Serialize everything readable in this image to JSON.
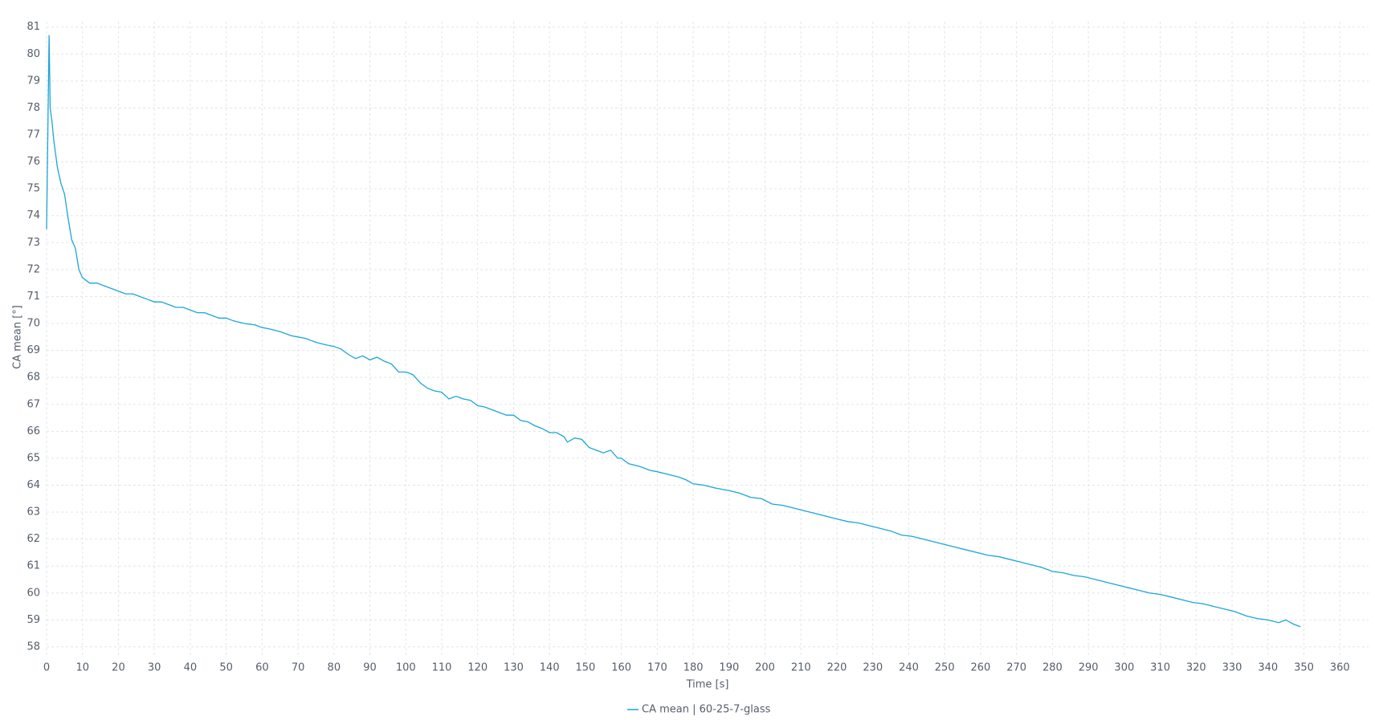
{
  "chart_data": {
    "type": "line",
    "x_label": "Time [s]",
    "y_label": "CA mean [°]",
    "x": [
      0,
      0.7,
      1,
      1.5,
      2,
      3,
      4,
      5,
      6,
      7,
      8,
      9,
      10,
      11,
      12,
      14,
      16,
      18,
      20,
      22,
      24,
      26,
      28,
      30,
      32,
      34,
      36,
      38,
      40,
      42,
      44,
      46,
      48,
      50,
      52,
      55,
      58,
      60,
      62,
      65,
      68,
      70,
      72,
      75,
      78,
      80,
      82,
      84,
      86,
      88,
      90,
      92,
      94,
      96,
      98,
      100,
      102,
      104,
      106,
      108,
      110,
      112,
      114,
      116,
      118,
      120,
      122,
      124,
      126,
      128,
      130,
      132,
      134,
      136,
      138,
      140,
      142,
      144,
      145,
      147,
      149,
      151,
      153,
      155,
      157,
      159,
      160,
      162,
      165,
      168,
      170,
      173,
      176,
      178,
      180,
      183,
      186,
      190,
      193,
      196,
      199,
      202,
      205,
      208,
      211,
      214,
      217,
      220,
      223,
      226,
      229,
      232,
      235,
      238,
      241,
      244,
      247,
      250,
      253,
      256,
      259,
      262,
      265,
      268,
      271,
      274,
      277,
      280,
      283,
      286,
      289,
      292,
      295,
      298,
      301,
      304,
      307,
      310,
      313,
      316,
      319,
      322,
      325,
      328,
      331,
      334,
      337,
      340,
      343,
      345,
      347,
      349
    ],
    "series": [
      {
        "name": "CA mean | 60-25-7-glass",
        "color": "#1ba5d8",
        "values": [
          73.5,
          80.7,
          78.0,
          77.5,
          76.8,
          75.8,
          75.2,
          74.8,
          73.9,
          73.1,
          72.8,
          72.0,
          71.7,
          71.6,
          71.5,
          71.5,
          71.4,
          71.3,
          71.2,
          71.1,
          71.1,
          71.0,
          70.9,
          70.8,
          70.8,
          70.7,
          70.6,
          70.6,
          70.5,
          70.4,
          70.4,
          70.3,
          70.2,
          70.2,
          70.1,
          70.0,
          69.95,
          69.85,
          69.8,
          69.7,
          69.55,
          69.5,
          69.45,
          69.3,
          69.2,
          69.15,
          69.05,
          68.85,
          68.7,
          68.8,
          68.65,
          68.75,
          68.6,
          68.5,
          68.2,
          68.2,
          68.1,
          67.8,
          67.6,
          67.5,
          67.45,
          67.2,
          67.3,
          67.2,
          67.15,
          66.95,
          66.9,
          66.8,
          66.7,
          66.6,
          66.6,
          66.4,
          66.35,
          66.2,
          66.1,
          65.95,
          65.95,
          65.8,
          65.6,
          65.75,
          65.7,
          65.4,
          65.3,
          65.2,
          65.3,
          65.0,
          65.0,
          64.8,
          64.7,
          64.55,
          64.5,
          64.4,
          64.3,
          64.2,
          64.05,
          64.0,
          63.9,
          63.8,
          63.7,
          63.55,
          63.5,
          63.3,
          63.25,
          63.15,
          63.05,
          62.95,
          62.85,
          62.75,
          62.65,
          62.6,
          62.5,
          62.4,
          62.3,
          62.15,
          62.1,
          62.0,
          61.9,
          61.8,
          61.7,
          61.6,
          61.5,
          61.4,
          61.35,
          61.25,
          61.15,
          61.05,
          60.95,
          60.8,
          60.75,
          60.65,
          60.6,
          60.5,
          60.4,
          60.3,
          60.2,
          60.1,
          60.0,
          59.95,
          59.85,
          59.75,
          59.65,
          59.6,
          59.5,
          59.4,
          59.3,
          59.15,
          59.05,
          59.0,
          58.9,
          59.0,
          58.85,
          58.75
        ]
      }
    ],
    "xlim": [
      0,
      368
    ],
    "ylim": [
      57.7,
      81.2
    ],
    "xticks": [
      0,
      10,
      20,
      30,
      40,
      50,
      60,
      70,
      80,
      90,
      100,
      110,
      120,
      130,
      140,
      150,
      160,
      170,
      180,
      190,
      200,
      210,
      220,
      230,
      240,
      250,
      260,
      270,
      280,
      290,
      300,
      310,
      320,
      330,
      340,
      350,
      360
    ],
    "yticks": [
      58,
      59,
      60,
      61,
      62,
      63,
      64,
      65,
      66,
      67,
      68,
      69,
      70,
      71,
      72,
      73,
      74,
      75,
      76,
      77,
      78,
      79,
      80,
      81
    ],
    "grid": true,
    "legend": "bottom"
  }
}
